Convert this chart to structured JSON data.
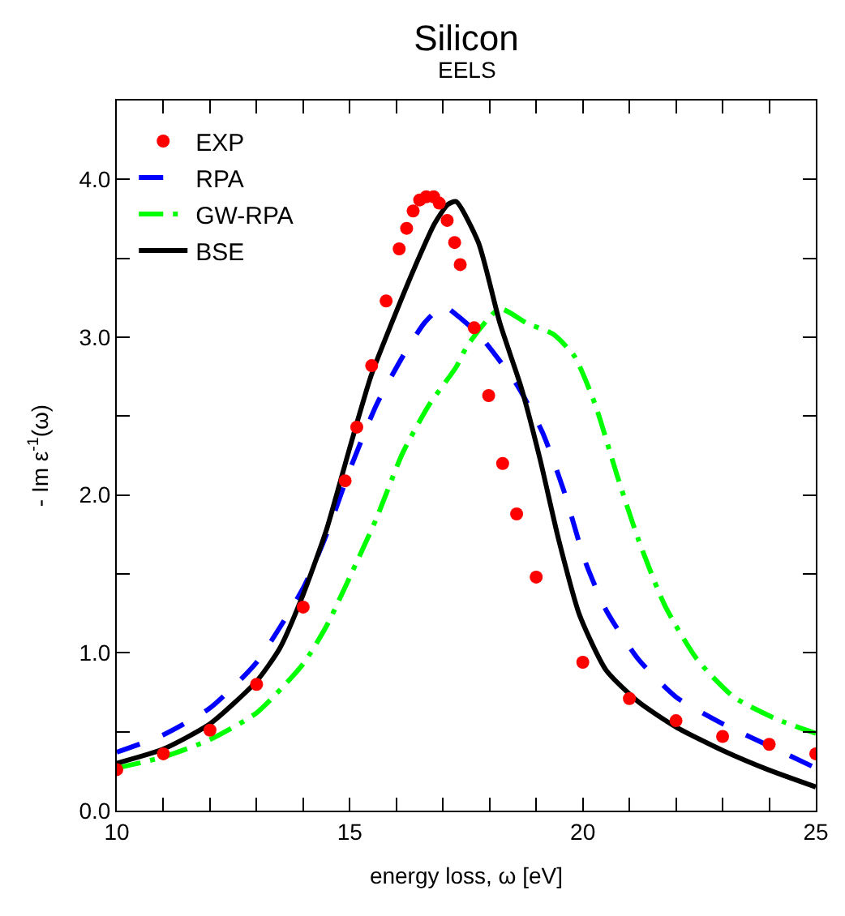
{
  "chart_data": {
    "type": "line",
    "title": "Silicon",
    "subtitle": "EELS",
    "xlabel": "energy loss, ω [eV]",
    "ylabel": "- Im ε$^{-1}$(ω)",
    "xlim": [
      10,
      25
    ],
    "ylim": [
      0,
      4.5
    ],
    "xticks": [
      10,
      {
        "value": 11,
        "label": null
      },
      {
        "value": 12,
        "label": null
      },
      {
        "value": 13,
        "label": null
      },
      {
        "value": 14,
        "label": null
      },
      15,
      {
        "value": 16,
        "label": null
      },
      {
        "value": 17,
        "label": null
      },
      {
        "value": 18,
        "label": null
      },
      {
        "value": 19,
        "label": null
      },
      20,
      {
        "value": 21,
        "label": null
      },
      {
        "value": 22,
        "label": null
      },
      {
        "value": 23,
        "label": null
      },
      {
        "value": 24,
        "label": null
      },
      25
    ],
    "yticks": [
      {
        "value": 0,
        "label": "0.0"
      },
      {
        "value": 0.5,
        "label": null
      },
      {
        "value": 1,
        "label": "1.0"
      },
      {
        "value": 1.5,
        "label": null
      },
      {
        "value": 2,
        "label": "2.0"
      },
      {
        "value": 2.5,
        "label": null
      },
      {
        "value": 3,
        "label": "3.0"
      },
      {
        "value": 3.5,
        "label": null
      },
      {
        "value": 4,
        "label": "4.0"
      }
    ],
    "legend": "top left",
    "series": [
      {
        "name": "EXP",
        "type": "scatter",
        "marker": "circle",
        "color": "#ff0000",
        "x": [
          10,
          11,
          12,
          13,
          14,
          14.9,
          15.15,
          15.47,
          15.78,
          16.06,
          16.22,
          16.36,
          16.5,
          16.64,
          16.8,
          16.92,
          17.09,
          17.25,
          17.37,
          17.67,
          17.98,
          18.28,
          18.58,
          19.0,
          20,
          21,
          22,
          23,
          24,
          25
        ],
        "values": [
          0.26,
          0.36,
          0.51,
          0.8,
          1.29,
          2.09,
          2.43,
          2.82,
          3.23,
          3.56,
          3.69,
          3.8,
          3.87,
          3.89,
          3.89,
          3.85,
          3.74,
          3.6,
          3.46,
          3.06,
          2.63,
          2.2,
          1.88,
          1.48,
          0.94,
          0.71,
          0.57,
          0.47,
          0.42,
          0.36
        ]
      },
      {
        "name": "RPA",
        "line_style": "dashed",
        "color": "#0000ff",
        "x": [
          10,
          11,
          12,
          13,
          14,
          14.5,
          15,
          15.57,
          16.14,
          16.6,
          17.0,
          17.08,
          17.76,
          18.56,
          19.13,
          19.59,
          20.05,
          20.5,
          21.19,
          22,
          23,
          24,
          25
        ],
        "values": [
          0.37,
          0.48,
          0.65,
          0.94,
          1.41,
          1.75,
          2.16,
          2.57,
          2.88,
          3.09,
          3.2,
          3.19,
          3.02,
          2.71,
          2.4,
          2.03,
          1.58,
          1.27,
          0.96,
          0.72,
          0.55,
          0.41,
          0.27
        ]
      },
      {
        "name": "GW-RPA",
        "line_style": "dashdot",
        "color": "#00ff00",
        "x": [
          10,
          11,
          12,
          13,
          14,
          14.5,
          15,
          15.57,
          16.14,
          16.7,
          17.28,
          17.53,
          18.22,
          18.79,
          19.36,
          19.82,
          20.27,
          20.73,
          21.19,
          21.76,
          22.45,
          23.24,
          24.16,
          25
        ],
        "values": [
          0.27,
          0.34,
          0.45,
          0.62,
          0.93,
          1.17,
          1.48,
          1.85,
          2.27,
          2.57,
          2.81,
          2.95,
          3.18,
          3.09,
          3.02,
          2.88,
          2.57,
          2.13,
          1.72,
          1.3,
          0.96,
          0.72,
          0.58,
          0.49
        ]
      },
      {
        "name": "BSE",
        "line_style": "solid",
        "color": "#000000",
        "x": [
          10,
          11,
          12,
          13,
          13.5,
          14,
          14.5,
          15,
          15.45,
          15.9,
          16.36,
          16.82,
          17.1,
          17.28,
          17.76,
          18.22,
          18.68,
          19.08,
          19.48,
          19.93,
          20.5,
          21.19,
          22,
          23.01,
          23.97,
          25
        ],
        "values": [
          0.3,
          0.39,
          0.55,
          0.82,
          1.03,
          1.37,
          1.78,
          2.3,
          2.75,
          3.09,
          3.42,
          3.72,
          3.84,
          3.86,
          3.6,
          3.09,
          2.68,
          2.23,
          1.72,
          1.24,
          0.89,
          0.69,
          0.53,
          0.38,
          0.26,
          0.15
        ]
      }
    ]
  }
}
